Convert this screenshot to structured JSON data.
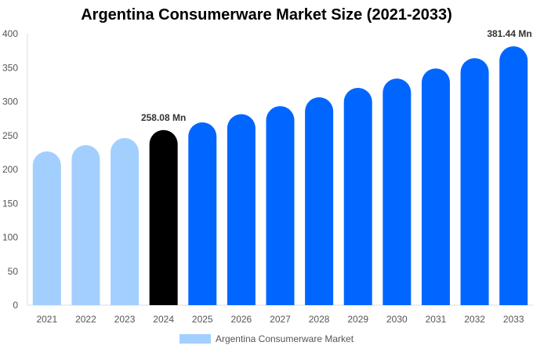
{
  "chart_data": {
    "type": "bar",
    "title": "Argentina Consumerware Market Size (2021-2033)",
    "categories": [
      "2021",
      "2022",
      "2023",
      "2024",
      "2025",
      "2026",
      "2027",
      "2028",
      "2029",
      "2030",
      "2031",
      "2032",
      "2033"
    ],
    "series": [
      {
        "name": "Argentina Consumerware Market",
        "values": [
          226.6,
          235.8,
          246.2,
          258.08,
          269.4,
          281.5,
          293.3,
          306.4,
          320.2,
          334.0,
          348.8,
          364.0,
          381.44
        ]
      }
    ],
    "bar_colors": [
      "#a3cfff",
      "#a3cfff",
      "#a3cfff",
      "#000000",
      "#0066ff",
      "#0066ff",
      "#0066ff",
      "#0066ff",
      "#0066ff",
      "#0066ff",
      "#0066ff",
      "#0066ff",
      "#0066ff"
    ],
    "data_labels": {
      "3": "258.08 Mn",
      "12": "381.44 Mn"
    },
    "ylim": [
      0,
      400
    ],
    "yticks": [
      0,
      50,
      100,
      150,
      200,
      250,
      300,
      350,
      400
    ],
    "grid": false,
    "legend": "bottom",
    "xlabel": "",
    "ylabel": ""
  }
}
